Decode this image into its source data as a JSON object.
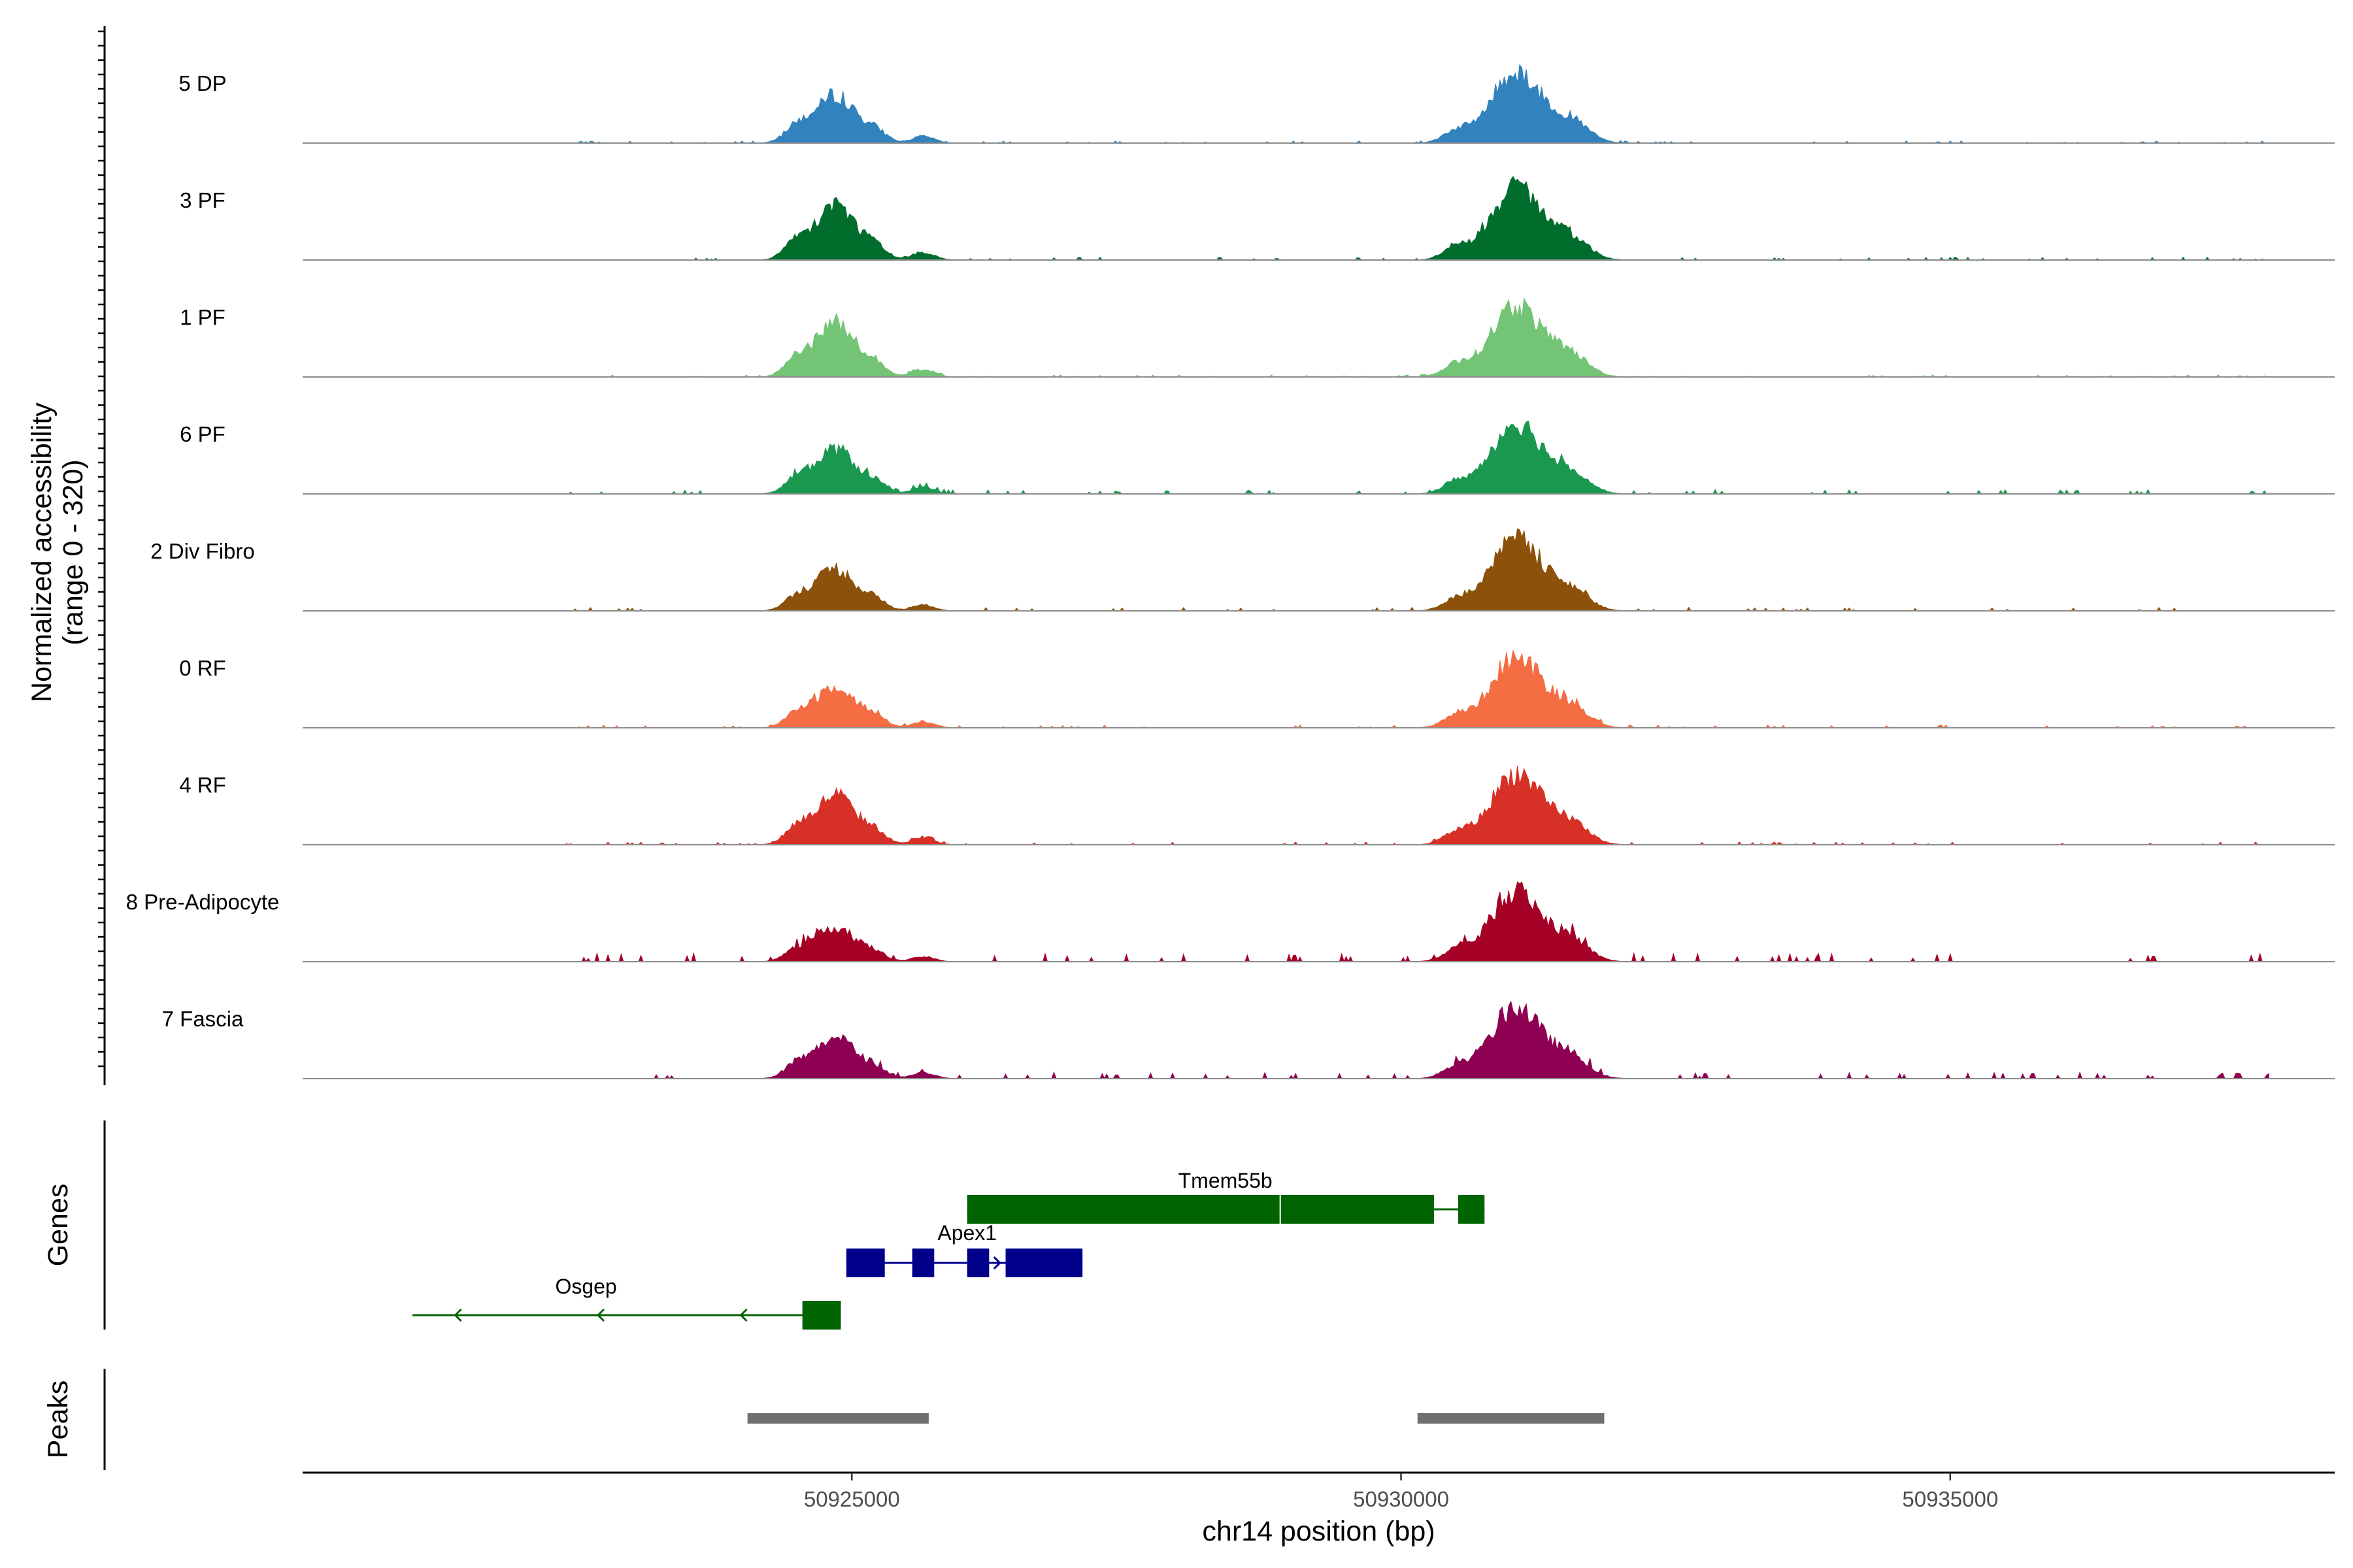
{
  "chart_data": {
    "type": "area",
    "title": "",
    "ylabel": "Normalized accessibility (range 0 - 320)",
    "ylabel_lines": [
      "Normalized accessibility",
      "(range 0 - 320)"
    ],
    "xlabel": "chr14 position (bp)",
    "xlim": [
      50920000,
      50938500
    ],
    "ylim": [
      0,
      320
    ],
    "x_ticks": [
      50925000,
      50930000,
      50935000
    ],
    "x_tick_labels": [
      "50925000",
      "50930000",
      "50935000"
    ],
    "series": [
      {
        "name": "5 DP",
        "color": "#3182BD",
        "peak1": 0.62,
        "peak2": 1.0,
        "noise": 0.015
      },
      {
        "name": "3 PF",
        "color": "#006D2C",
        "peak1": 0.72,
        "peak2": 1.0,
        "noise": 0.02
      },
      {
        "name": "1 PF",
        "color": "#74C476",
        "peak1": 0.7,
        "peak2": 1.0,
        "noise": 0.015
      },
      {
        "name": "6 PF",
        "color": "#1A9850",
        "peak1": 0.58,
        "peak2": 1.0,
        "noise": 0.03
      },
      {
        "name": "2 Div Fibro",
        "color": "#8C510A",
        "peak1": 0.54,
        "peak2": 1.0,
        "noise": 0.025
      },
      {
        "name": "0 RF",
        "color": "#F46D43",
        "peak1": 0.55,
        "peak2": 1.0,
        "noise": 0.02
      },
      {
        "name": "4 RF",
        "color": "#D73027",
        "peak1": 0.65,
        "peak2": 1.0,
        "noise": 0.02
      },
      {
        "name": "8 Pre-Adipocyte",
        "color": "#A50026",
        "peak1": 0.45,
        "peak2": 1.0,
        "noise": 0.06
      },
      {
        "name": "7 Fascia",
        "color": "#8E0152",
        "peak1": 0.55,
        "peak2": 1.0,
        "noise": 0.045
      }
    ],
    "genes_panel_label": "Genes",
    "genes": [
      {
        "name": "Tmem55b",
        "color": "#006400",
        "strand": "+",
        "start": 50926050,
        "end": 50930760,
        "exons": [
          [
            50926050,
            50930300
          ],
          [
            50930520,
            50930760
          ]
        ]
      },
      {
        "name": "Apex1",
        "color": "#00008B",
        "strand": "+",
        "start": 50924950,
        "end": 50927100,
        "exons": [
          [
            50924950,
            50925300
          ],
          [
            50925550,
            50925750
          ],
          [
            50926050,
            50926250
          ],
          [
            50926400,
            50927100
          ]
        ]
      },
      {
        "name": "Osgep",
        "color": "#006400",
        "strand": "-",
        "start": 50921000,
        "end": 50924900,
        "exons": [
          [
            50924550,
            50924900
          ]
        ]
      }
    ],
    "peaks_panel_label": "Peaks",
    "peaks": [
      [
        50924050,
        50925700
      ],
      [
        50930150,
        50931850
      ]
    ]
  }
}
